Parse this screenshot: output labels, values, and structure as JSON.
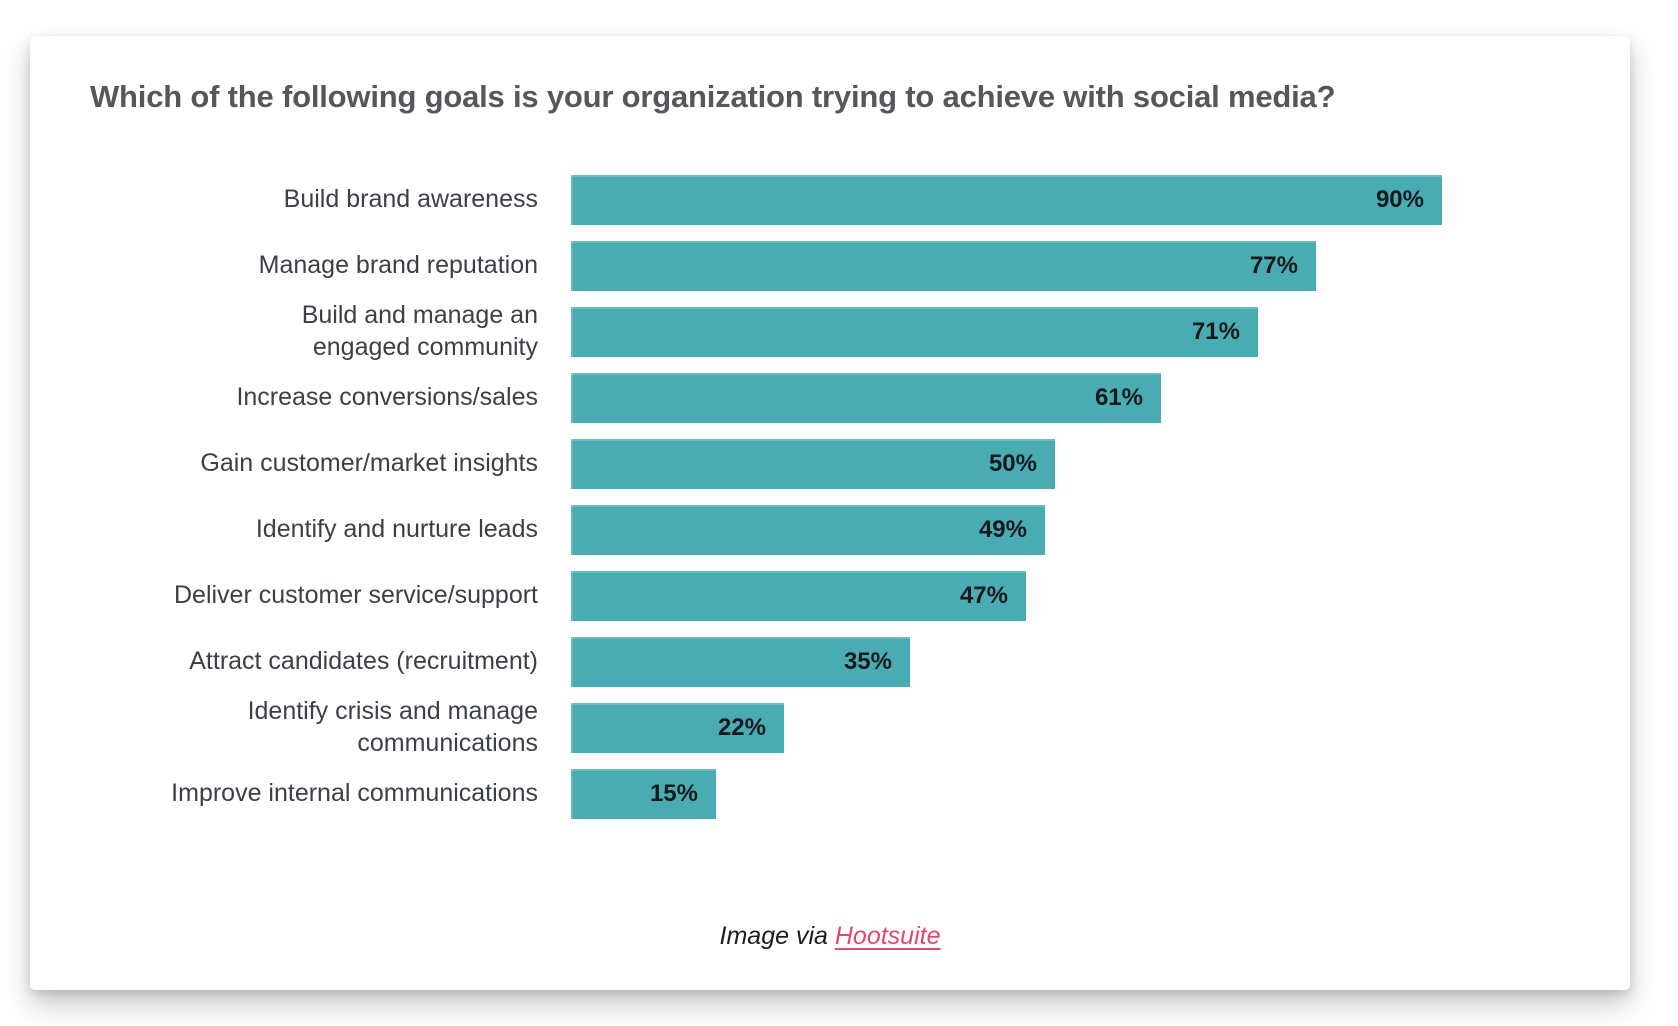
{
  "chart_data": {
    "type": "bar",
    "orientation": "horizontal",
    "title": "Which of the following goals is your organization trying to achieve with social media?",
    "categories": [
      "Build brand awareness",
      "Manage brand reputation",
      "Build and manage an\nengaged community",
      "Increase conversions/sales",
      "Gain customer/market insights",
      "Identify and nurture leads",
      "Deliver customer service/support",
      "Attract candidates (recruitment)",
      "Identify crisis and manage\ncommunications",
      "Improve internal communications"
    ],
    "values": [
      90,
      77,
      71,
      61,
      50,
      49,
      47,
      35,
      22,
      15
    ],
    "unit": "%",
    "xlim": [
      0,
      100
    ],
    "grid": false,
    "legend": false,
    "value_label_position": "inside-end",
    "bar_color": "#4aacb3"
  },
  "footer": {
    "prefix": "Image via ",
    "link_text": "Hootsuite",
    "link_color": "#e2476f"
  }
}
